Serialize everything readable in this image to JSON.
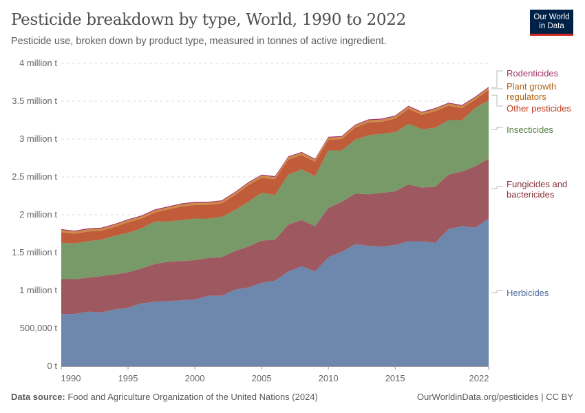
{
  "header": {
    "title": "Pesticide breakdown by type, World, 1990 to 2022",
    "subtitle": "Pesticide use, broken down by product type, measured in tonnes of active ingredient.",
    "logo": "Our World in Data"
  },
  "footer": {
    "source_label": "Data source:",
    "source": "Food and Agriculture Organization of the United Nations (2024)",
    "credit": "OurWorldinData.org/pesticides | CC BY"
  },
  "chart_data": {
    "type": "area",
    "stacked": true,
    "title": "Pesticide breakdown by type, World, 1990 to 2022",
    "ylim": [
      0,
      4000000
    ],
    "yticks": [
      0,
      500000,
      1000000,
      1500000,
      2000000,
      2500000,
      3000000,
      3500000,
      4000000
    ],
    "ytick_labels": [
      "0 t",
      "500,000 t",
      "1 million t",
      "1.5 million t",
      "2 million t",
      "2.5 million t",
      "3 million t",
      "3.5 million t",
      "4 million t"
    ],
    "xticks": [
      1990,
      1995,
      2000,
      2005,
      2010,
      2015,
      2022
    ],
    "xtick_labels": [
      "1990",
      "1995",
      "2000",
      "2005",
      "2010",
      "2015",
      "2022"
    ],
    "grid": "horizontal dashed",
    "legend": "right, inline labels",
    "x": [
      1990,
      1991,
      1992,
      1993,
      1994,
      1995,
      1996,
      1997,
      1998,
      1999,
      2000,
      2001,
      2002,
      2003,
      2004,
      2005,
      2006,
      2007,
      2008,
      2009,
      2010,
      2011,
      2012,
      2013,
      2014,
      2015,
      2016,
      2017,
      2018,
      2019,
      2020,
      2021,
      2022
    ],
    "series": [
      {
        "name": "Herbicides",
        "color": "#6d87ad",
        "label_color": "#4c6a9c",
        "values": [
          690000,
          690000,
          720000,
          710000,
          750000,
          770000,
          830000,
          850000,
          860000,
          870000,
          880000,
          930000,
          930000,
          1010000,
          1040000,
          1100000,
          1130000,
          1250000,
          1320000,
          1250000,
          1440000,
          1510000,
          1610000,
          1590000,
          1580000,
          1600000,
          1650000,
          1650000,
          1630000,
          1810000,
          1850000,
          1830000,
          1950000
        ]
      },
      {
        "name": "Fungicides and bactericides",
        "color": "#9e5860",
        "label_color": "#883039",
        "values": [
          460000,
          460000,
          450000,
          480000,
          460000,
          470000,
          460000,
          500000,
          520000,
          520000,
          520000,
          500000,
          510000,
          510000,
          540000,
          560000,
          540000,
          620000,
          610000,
          600000,
          650000,
          660000,
          670000,
          680000,
          710000,
          710000,
          750000,
          710000,
          740000,
          720000,
          720000,
          810000,
          790000
        ]
      },
      {
        "name": "Insecticides",
        "color": "#789a68",
        "label_color": "#578145",
        "values": [
          480000,
          470000,
          480000,
          480000,
          510000,
          520000,
          530000,
          560000,
          530000,
          540000,
          550000,
          520000,
          530000,
          540000,
          590000,
          630000,
          590000,
          660000,
          670000,
          660000,
          760000,
          680000,
          710000,
          780000,
          780000,
          780000,
          800000,
          770000,
          780000,
          720000,
          680000,
          770000,
          770000
        ]
      },
      {
        "name": "Other pesticides",
        "color": "#c05c3a",
        "label_color": "#c0391b",
        "values": [
          140000,
          130000,
          130000,
          120000,
          120000,
          140000,
          130000,
          120000,
          160000,
          180000,
          180000,
          180000,
          180000,
          200000,
          220000,
          200000,
          210000,
          200000,
          190000,
          190000,
          140000,
          150000,
          160000,
          170000,
          160000,
          180000,
          200000,
          190000,
          220000,
          190000,
          160000,
          110000,
          140000
        ]
      },
      {
        "name": "Plant growth regulators",
        "color": "#cc8c46",
        "label_color": "#b16214",
        "values": [
          28000,
          28000,
          28000,
          28000,
          28000,
          28000,
          28000,
          28000,
          28000,
          28000,
          28000,
          28000,
          28000,
          28000,
          28000,
          28000,
          28000,
          28000,
          28000,
          28000,
          28000,
          28000,
          28000,
          28000,
          28000,
          28000,
          28000,
          28000,
          28000,
          28000,
          28000,
          28000,
          28000
        ]
      },
      {
        "name": "Rodenticides",
        "color": "#a8336b",
        "label_color": "#a2336b",
        "values": [
          12000,
          12000,
          12000,
          12000,
          12000,
          12000,
          12000,
          12000,
          12000,
          12000,
          12000,
          12000,
          12000,
          12000,
          12000,
          12000,
          12000,
          12000,
          12000,
          12000,
          12000,
          12000,
          12000,
          12000,
          12000,
          12000,
          12000,
          12000,
          12000,
          12000,
          12000,
          12000,
          12000
        ]
      }
    ],
    "labels": {
      "rodenticides": "Rodenticides",
      "pgr_1": "Plant growth",
      "pgr_2": "regulators",
      "other": "Other pesticides",
      "insecticides": "Insecticides",
      "fung_1": "Fungicides and",
      "fung_2": "bactericides",
      "herbicides": "Herbicides"
    }
  }
}
